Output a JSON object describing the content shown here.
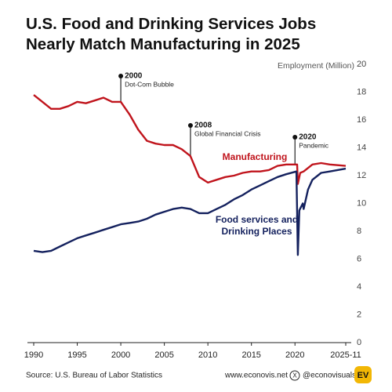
{
  "chart_data": {
    "type": "line",
    "title": "U.S. Food and Drinking Services Jobs Nearly Match Manufacturing in 2025",
    "y_axis_label": "Employment (Million)",
    "xlim": [
      1990,
      2025.83
    ],
    "xticks": [
      1990,
      1995,
      2000,
      2005,
      2010,
      2015,
      2020,
      {
        "value": 2025.83,
        "label": "2025-11"
      }
    ],
    "ylim": [
      0,
      20
    ],
    "yticks": [
      0,
      2,
      4,
      6,
      8,
      10,
      12,
      14,
      16,
      18,
      20
    ],
    "grid": false,
    "series": [
      {
        "name": "Manufacturing",
        "color": "#c0141c",
        "x": [
          1990,
          1991,
          1992,
          1993,
          1994,
          1995,
          1996,
          1997,
          1998,
          1999,
          2000,
          2001,
          2002,
          2003,
          2004,
          2005,
          2006,
          2007,
          2008,
          2009,
          2010,
          2011,
          2012,
          2013,
          2014,
          2015,
          2016,
          2017,
          2018,
          2019,
          2020.25,
          2020.33,
          2020.6,
          2021,
          2022,
          2023,
          2024,
          2025.83
        ],
        "values": [
          17.8,
          17.3,
          16.8,
          16.8,
          17.0,
          17.3,
          17.2,
          17.4,
          17.6,
          17.3,
          17.3,
          16.4,
          15.3,
          14.5,
          14.3,
          14.2,
          14.2,
          13.9,
          13.4,
          11.9,
          11.5,
          11.7,
          11.9,
          12.0,
          12.2,
          12.3,
          12.3,
          12.4,
          12.7,
          12.8,
          12.8,
          11.4,
          12.2,
          12.3,
          12.8,
          12.9,
          12.8,
          12.7
        ]
      },
      {
        "name": "Food services and Drinking Places",
        "color": "#14215e",
        "x": [
          1990,
          1991,
          1992,
          1993,
          1994,
          1995,
          1996,
          1997,
          1998,
          1999,
          2000,
          2001,
          2002,
          2003,
          2004,
          2005,
          2006,
          2007,
          2008,
          2009,
          2010,
          2011,
          2012,
          2013,
          2014,
          2015,
          2016,
          2017,
          2018,
          2019,
          2020.17,
          2020.33,
          2020.5,
          2020.9,
          2021,
          2021.5,
          2022,
          2023,
          2024,
          2025.83
        ],
        "values": [
          6.6,
          6.5,
          6.6,
          6.9,
          7.2,
          7.5,
          7.7,
          7.9,
          8.1,
          8.3,
          8.5,
          8.6,
          8.7,
          8.9,
          9.2,
          9.4,
          9.6,
          9.7,
          9.6,
          9.3,
          9.3,
          9.6,
          9.9,
          10.3,
          10.6,
          11.0,
          11.3,
          11.6,
          11.9,
          12.1,
          12.3,
          6.3,
          9.5,
          10.0,
          9.6,
          11.0,
          11.7,
          12.2,
          12.3,
          12.5
        ]
      }
    ],
    "annotations": [
      {
        "x": 2000,
        "label": "2000",
        "text": "Dot-Com Bubble"
      },
      {
        "x": 2008,
        "label": "2008",
        "text": "Global Financial Crisis"
      },
      {
        "x": 2020,
        "label": "2020",
        "text": "Pandemic"
      }
    ],
    "source": "Source: U.S. Bureau of Labor Statistics",
    "website": "www.econovis.net",
    "social": "@econovisuals",
    "logo": "EV"
  }
}
